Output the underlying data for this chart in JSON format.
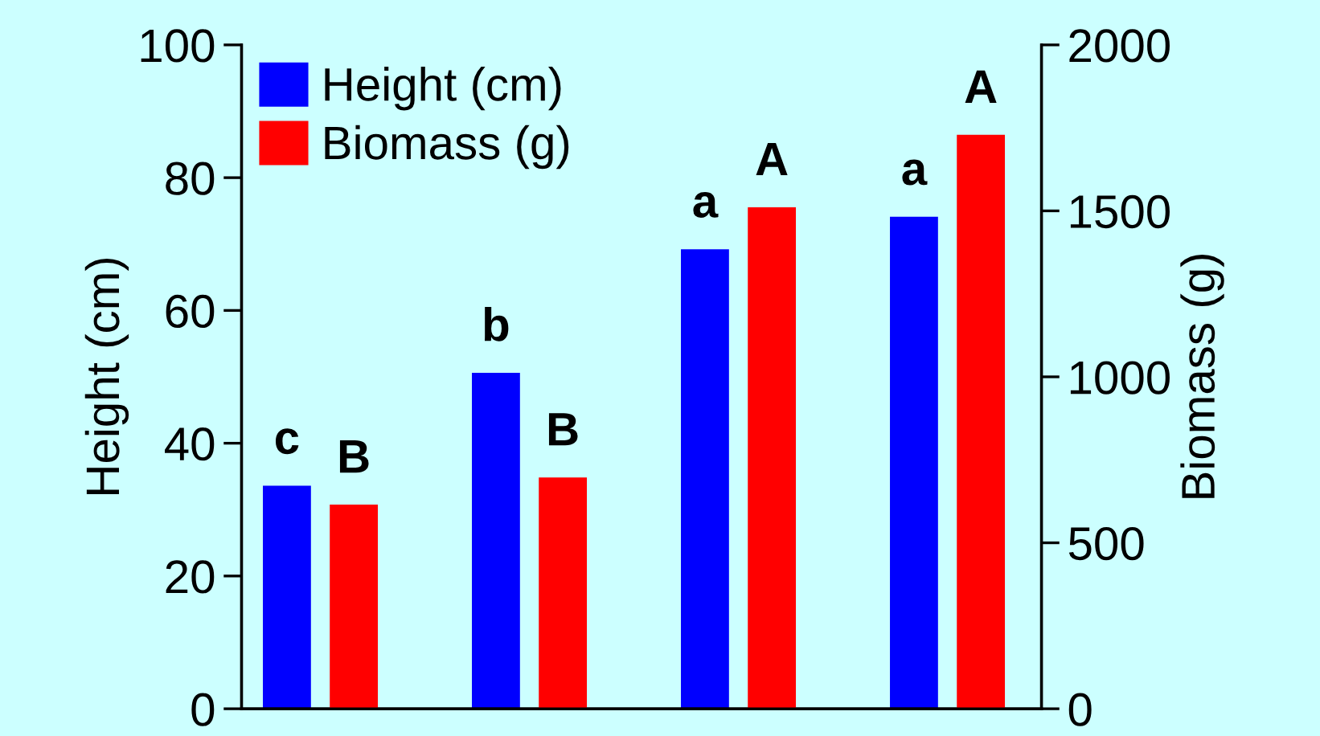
{
  "chart_data": {
    "type": "bar",
    "categories": [
      null,
      null,
      null,
      null
    ],
    "series": [
      {
        "name": "Height (cm)",
        "color": "#0000ff",
        "values": [
          33.6,
          50.6,
          69.2,
          74.1
        ],
        "value_labels": [
          "c",
          "b",
          "a",
          "a"
        ]
      },
      {
        "name": "Biomass (g)",
        "color": "#ff0000",
        "axis": "y2",
        "values": [
          615,
          697,
          1511,
          1729
        ],
        "value_labels": [
          "B",
          "B",
          "A",
          "A"
        ]
      }
    ],
    "ylabel": "Height (cm)",
    "y2label": "Biomass (g)",
    "ylim": [
      0,
      100
    ],
    "yticks": [
      0,
      20,
      40,
      60,
      80,
      100
    ],
    "y2lim": [
      0,
      2000
    ],
    "y2ticks": [
      0,
      500,
      1000,
      1500,
      2000
    ],
    "grid": false,
    "legend": "top left"
  }
}
